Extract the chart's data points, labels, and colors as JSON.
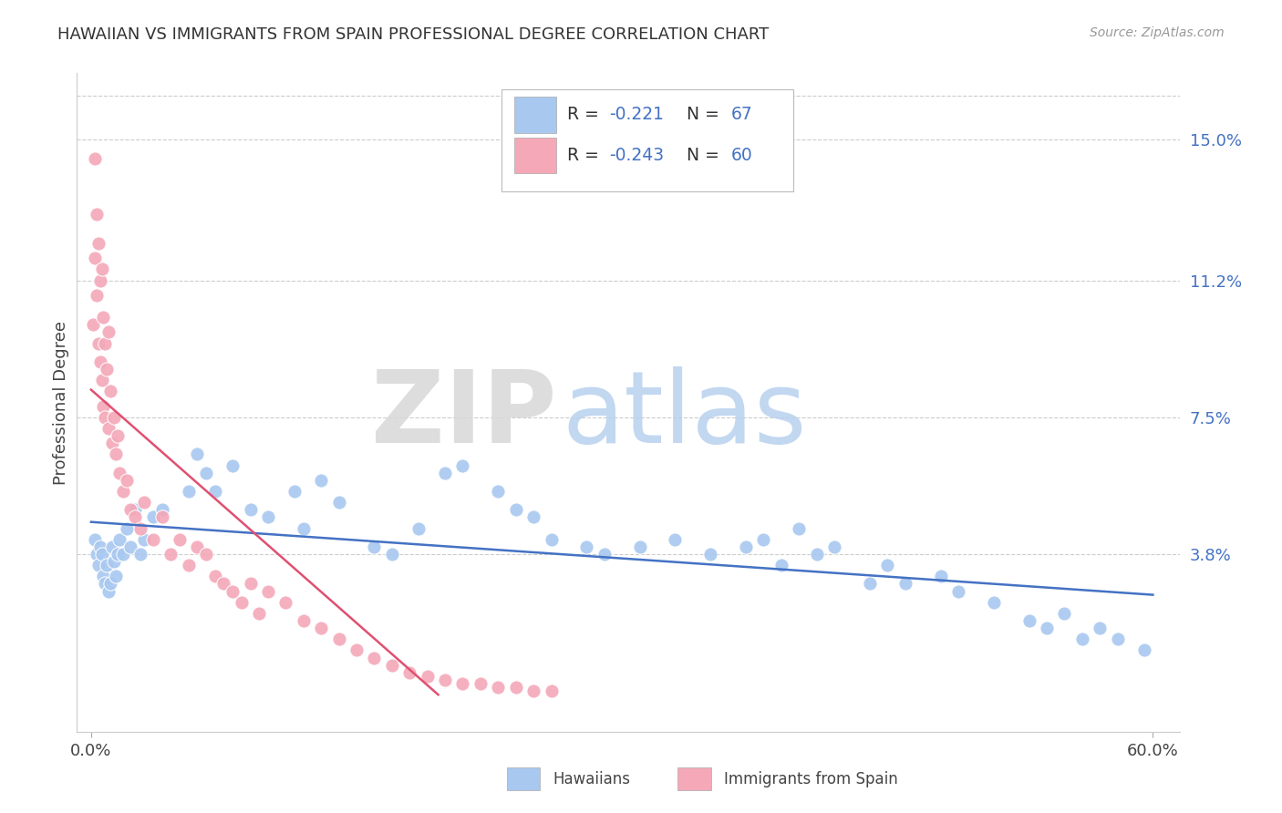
{
  "title": "HAWAIIAN VS IMMIGRANTS FROM SPAIN PROFESSIONAL DEGREE CORRELATION CHART",
  "source": "Source: ZipAtlas.com",
  "ylabel": "Professional Degree",
  "right_yticks": [
    "15.0%",
    "11.2%",
    "7.5%",
    "3.8%"
  ],
  "right_ytick_vals": [
    0.15,
    0.112,
    0.075,
    0.038
  ],
  "xlim": [
    0.0,
    0.6
  ],
  "ylim": [
    0.0,
    0.165
  ],
  "hawaiians_R": "-0.221",
  "hawaiians_N": "67",
  "spain_R": "-0.243",
  "spain_N": "60",
  "hawaii_color": "#A8C8F0",
  "spain_color": "#F4A8B8",
  "hawaii_line_color": "#4472C4",
  "spain_line_color": "#E05070",
  "watermark_zip": "ZIP",
  "watermark_atlas": "atlas",
  "background_color": "#FFFFFF",
  "hawaiians_x": [
    0.002,
    0.003,
    0.004,
    0.005,
    0.006,
    0.007,
    0.008,
    0.009,
    0.01,
    0.011,
    0.012,
    0.013,
    0.014,
    0.015,
    0.016,
    0.018,
    0.02,
    0.022,
    0.025,
    0.028,
    0.03,
    0.035,
    0.04,
    0.055,
    0.06,
    0.065,
    0.07,
    0.08,
    0.09,
    0.1,
    0.115,
    0.12,
    0.13,
    0.14,
    0.16,
    0.17,
    0.185,
    0.2,
    0.21,
    0.23,
    0.24,
    0.25,
    0.26,
    0.28,
    0.29,
    0.31,
    0.33,
    0.35,
    0.37,
    0.38,
    0.39,
    0.4,
    0.41,
    0.42,
    0.44,
    0.45,
    0.46,
    0.48,
    0.49,
    0.51,
    0.53,
    0.54,
    0.55,
    0.56,
    0.57,
    0.58,
    0.595
  ],
  "hawaiians_y": [
    0.042,
    0.038,
    0.035,
    0.04,
    0.038,
    0.032,
    0.03,
    0.035,
    0.028,
    0.03,
    0.04,
    0.036,
    0.032,
    0.038,
    0.042,
    0.038,
    0.045,
    0.04,
    0.05,
    0.038,
    0.042,
    0.048,
    0.05,
    0.055,
    0.065,
    0.06,
    0.055,
    0.062,
    0.05,
    0.048,
    0.055,
    0.045,
    0.058,
    0.052,
    0.04,
    0.038,
    0.045,
    0.06,
    0.062,
    0.055,
    0.05,
    0.048,
    0.042,
    0.04,
    0.038,
    0.04,
    0.042,
    0.038,
    0.04,
    0.042,
    0.035,
    0.045,
    0.038,
    0.04,
    0.03,
    0.035,
    0.03,
    0.032,
    0.028,
    0.025,
    0.02,
    0.018,
    0.022,
    0.015,
    0.018,
    0.015,
    0.012
  ],
  "spain_x": [
    0.001,
    0.002,
    0.002,
    0.003,
    0.003,
    0.004,
    0.004,
    0.005,
    0.005,
    0.006,
    0.006,
    0.007,
    0.007,
    0.008,
    0.008,
    0.009,
    0.01,
    0.01,
    0.011,
    0.012,
    0.013,
    0.014,
    0.015,
    0.016,
    0.018,
    0.02,
    0.022,
    0.025,
    0.028,
    0.03,
    0.035,
    0.04,
    0.045,
    0.05,
    0.055,
    0.06,
    0.065,
    0.07,
    0.075,
    0.08,
    0.085,
    0.09,
    0.095,
    0.1,
    0.11,
    0.12,
    0.13,
    0.14,
    0.15,
    0.16,
    0.17,
    0.18,
    0.19,
    0.2,
    0.21,
    0.22,
    0.23,
    0.24,
    0.25,
    0.26
  ],
  "spain_y": [
    0.1,
    0.145,
    0.118,
    0.13,
    0.108,
    0.122,
    0.095,
    0.112,
    0.09,
    0.115,
    0.085,
    0.102,
    0.078,
    0.095,
    0.075,
    0.088,
    0.098,
    0.072,
    0.082,
    0.068,
    0.075,
    0.065,
    0.07,
    0.06,
    0.055,
    0.058,
    0.05,
    0.048,
    0.045,
    0.052,
    0.042,
    0.048,
    0.038,
    0.042,
    0.035,
    0.04,
    0.038,
    0.032,
    0.03,
    0.028,
    0.025,
    0.03,
    0.022,
    0.028,
    0.025,
    0.02,
    0.018,
    0.015,
    0.012,
    0.01,
    0.008,
    0.006,
    0.005,
    0.004,
    0.003,
    0.003,
    0.002,
    0.002,
    0.001,
    0.001
  ]
}
